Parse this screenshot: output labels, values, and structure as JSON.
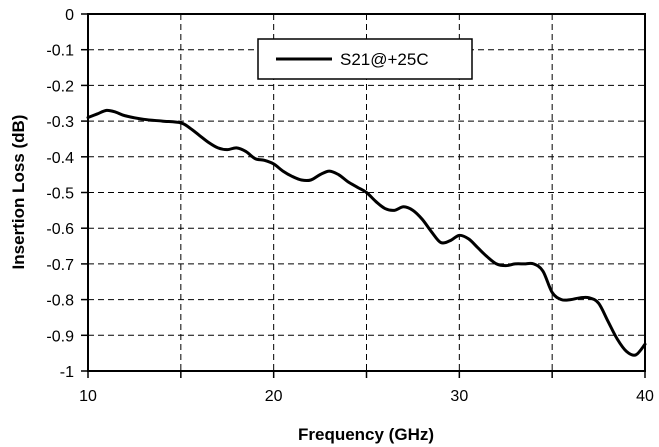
{
  "chart_data": {
    "type": "line",
    "xlabel": "Frequency (GHz)",
    "ylabel": "Insertion Loss (dB)",
    "xlim": [
      10,
      40
    ],
    "ylim": [
      -1,
      0
    ],
    "x_ticks": [
      10,
      20,
      30,
      40
    ],
    "x_tick_labels": [
      "10",
      "20",
      "30",
      "40"
    ],
    "x_grid_minor": [
      15,
      25,
      35
    ],
    "y_ticks": [
      0,
      -0.1,
      -0.2,
      -0.3,
      -0.4,
      -0.5,
      -0.6,
      -0.7,
      -0.8,
      -0.9,
      -1
    ],
    "y_tick_labels": [
      "0",
      "-0.1",
      "-0.2",
      "-0.3",
      "-0.4",
      "-0.5",
      "-0.6",
      "-0.7",
      "-0.8",
      "-0.9",
      "-1"
    ],
    "grid": true,
    "grid_style": "dashed",
    "legend_position": "top-center",
    "line_color": "#000000",
    "series": [
      {
        "name": "S21@+25C",
        "x": [
          10,
          10.5,
          11,
          11.5,
          12,
          13,
          14,
          15,
          15.5,
          16,
          16.5,
          17,
          17.5,
          18,
          18.5,
          19,
          19.5,
          20,
          20.5,
          21,
          21.5,
          22,
          22.5,
          23,
          23.5,
          24,
          24.5,
          25,
          25.5,
          26,
          26.5,
          27,
          27.5,
          28,
          28.5,
          29,
          29.5,
          30,
          30.5,
          31,
          31.5,
          32,
          32.5,
          33,
          33.5,
          34,
          34.5,
          35,
          35.5,
          36,
          36.5,
          37,
          37.5,
          38,
          38.5,
          39,
          39.5,
          40
        ],
        "values": [
          -0.29,
          -0.28,
          -0.27,
          -0.275,
          -0.285,
          -0.295,
          -0.3,
          -0.305,
          -0.32,
          -0.34,
          -0.36,
          -0.375,
          -0.38,
          -0.375,
          -0.385,
          -0.405,
          -0.41,
          -0.42,
          -0.44,
          -0.455,
          -0.465,
          -0.465,
          -0.45,
          -0.44,
          -0.45,
          -0.47,
          -0.485,
          -0.5,
          -0.525,
          -0.545,
          -0.55,
          -0.54,
          -0.55,
          -0.575,
          -0.61,
          -0.64,
          -0.635,
          -0.62,
          -0.63,
          -0.655,
          -0.68,
          -0.7,
          -0.705,
          -0.7,
          -0.7,
          -0.7,
          -0.72,
          -0.78,
          -0.8,
          -0.8,
          -0.795,
          -0.795,
          -0.81,
          -0.86,
          -0.91,
          -0.945,
          -0.955,
          -0.925
        ]
      }
    ]
  }
}
